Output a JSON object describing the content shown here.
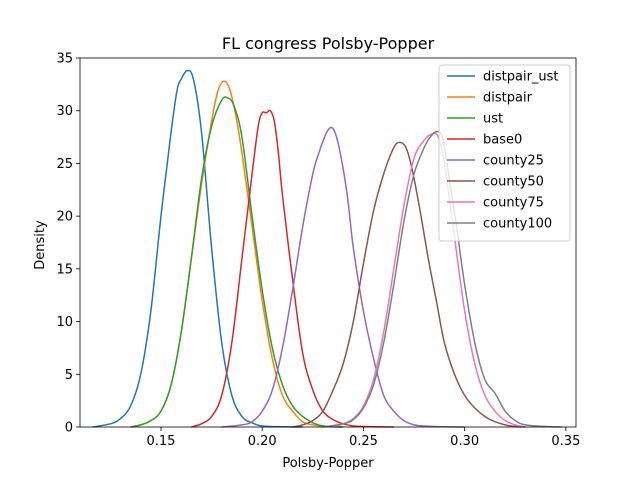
{
  "chart_data": {
    "type": "line",
    "title": "FL congress Polsby-Popper",
    "xlabel": "Polsby-Popper",
    "ylabel": "Density",
    "xlim": [
      0.11,
      0.355
    ],
    "ylim": [
      0,
      35
    ],
    "xticks": [
      "0.15",
      "0.20",
      "0.25",
      "0.30",
      "0.35"
    ],
    "yticks": [
      "0",
      "5",
      "10",
      "15",
      "20",
      "25",
      "30",
      "35"
    ],
    "grid": false,
    "legend_position": "top-right",
    "series": [
      {
        "name": "distpair_ust",
        "color": "#1f77b4",
        "x": [
          0.116,
          0.125,
          0.13,
          0.135,
          0.14,
          0.145,
          0.15,
          0.155,
          0.158,
          0.16,
          0.163,
          0.166,
          0.17,
          0.175,
          0.18,
          0.185,
          0.19,
          0.195,
          0.2,
          0.21,
          0.22
        ],
        "y": [
          0.0,
          0.3,
          0.8,
          2.0,
          5.0,
          11.0,
          20.0,
          28.0,
          32.0,
          33.0,
          33.8,
          33.0,
          28.0,
          17.0,
          8.0,
          3.0,
          1.0,
          0.4,
          0.1,
          0.02,
          0.0
        ]
      },
      {
        "name": "distpair",
        "color": "#ff7f0e",
        "x": [
          0.135,
          0.14,
          0.145,
          0.15,
          0.155,
          0.16,
          0.165,
          0.17,
          0.175,
          0.178,
          0.181,
          0.184,
          0.187,
          0.19,
          0.195,
          0.2,
          0.205,
          0.21,
          0.215,
          0.22,
          0.225,
          0.23,
          0.24
        ],
        "y": [
          0.0,
          0.2,
          0.6,
          1.5,
          4.0,
          9.0,
          16.0,
          23.0,
          29.0,
          31.8,
          32.8,
          32.0,
          29.5,
          26.0,
          19.0,
          12.0,
          6.5,
          3.0,
          1.5,
          0.5,
          0.2,
          0.1,
          0.0
        ]
      },
      {
        "name": "ust",
        "color": "#2ca02c",
        "x": [
          0.135,
          0.14,
          0.145,
          0.15,
          0.155,
          0.16,
          0.165,
          0.17,
          0.175,
          0.18,
          0.183,
          0.186,
          0.19,
          0.195,
          0.2,
          0.205,
          0.21,
          0.215,
          0.22,
          0.225,
          0.23,
          0.24
        ],
        "y": [
          0.0,
          0.2,
          0.6,
          1.5,
          4.0,
          9.0,
          16.0,
          23.5,
          28.5,
          31.0,
          31.2,
          30.5,
          27.5,
          20.0,
          13.0,
          7.5,
          4.0,
          2.0,
          1.0,
          0.4,
          0.1,
          0.0
        ]
      },
      {
        "name": "base0",
        "color": "#d62728",
        "x": [
          0.165,
          0.17,
          0.175,
          0.18,
          0.185,
          0.19,
          0.195,
          0.198,
          0.2,
          0.202,
          0.204,
          0.206,
          0.208,
          0.21,
          0.215,
          0.22,
          0.225,
          0.23,
          0.235,
          0.24,
          0.245,
          0.25,
          0.255,
          0.265
        ],
        "y": [
          0.0,
          0.3,
          1.0,
          3.0,
          8.0,
          16.0,
          24.0,
          28.5,
          29.8,
          29.8,
          30.0,
          29.0,
          26.0,
          22.0,
          14.0,
          7.0,
          3.5,
          1.5,
          0.7,
          0.3,
          0.1,
          0.05,
          0.02,
          0.0
        ]
      },
      {
        "name": "county25",
        "color": "#9467bd",
        "x": [
          0.18,
          0.19,
          0.195,
          0.2,
          0.205,
          0.21,
          0.215,
          0.22,
          0.225,
          0.228,
          0.232,
          0.235,
          0.238,
          0.242,
          0.245,
          0.25,
          0.255,
          0.26,
          0.265,
          0.27,
          0.275,
          0.28,
          0.29,
          0.3
        ],
        "y": [
          0.0,
          0.2,
          0.5,
          1.5,
          3.5,
          7.5,
          13.0,
          19.0,
          24.0,
          26.0,
          28.0,
          28.3,
          26.5,
          22.0,
          17.0,
          11.0,
          6.5,
          3.0,
          1.5,
          0.6,
          0.2,
          0.1,
          0.02,
          0.0
        ]
      },
      {
        "name": "county50",
        "color": "#8c564b",
        "x": [
          0.215,
          0.22,
          0.225,
          0.23,
          0.235,
          0.24,
          0.245,
          0.25,
          0.255,
          0.26,
          0.265,
          0.268,
          0.271,
          0.274,
          0.278,
          0.282,
          0.286,
          0.29,
          0.295,
          0.3,
          0.305,
          0.31,
          0.315,
          0.32,
          0.325,
          0.33
        ],
        "y": [
          0.0,
          0.2,
          0.6,
          1.5,
          3.5,
          6.0,
          10.0,
          15.5,
          20.5,
          24.0,
          26.5,
          27.0,
          26.5,
          24.5,
          20.5,
          16.0,
          12.0,
          8.0,
          5.0,
          3.0,
          1.8,
          1.0,
          0.5,
          0.2,
          0.05,
          0.0
        ]
      },
      {
        "name": "county75",
        "color": "#e377c2",
        "x": [
          0.235,
          0.24,
          0.245,
          0.25,
          0.255,
          0.26,
          0.265,
          0.27,
          0.275,
          0.28,
          0.284,
          0.287,
          0.29,
          0.295,
          0.3,
          0.305,
          0.31,
          0.315,
          0.32,
          0.325,
          0.33
        ],
        "y": [
          0.0,
          0.3,
          0.8,
          2.0,
          4.5,
          9.0,
          15.0,
          21.0,
          25.5,
          27.2,
          27.8,
          27.5,
          25.0,
          18.0,
          11.0,
          6.0,
          3.0,
          1.5,
          0.6,
          0.2,
          0.0
        ]
      },
      {
        "name": "county100",
        "color": "#7f7f7f",
        "x": [
          0.23,
          0.24,
          0.245,
          0.25,
          0.255,
          0.26,
          0.265,
          0.27,
          0.275,
          0.28,
          0.283,
          0.286,
          0.289,
          0.292,
          0.296,
          0.3,
          0.305,
          0.31,
          0.315,
          0.32,
          0.325,
          0.33,
          0.34,
          0.348
        ],
        "y": [
          0.0,
          0.3,
          0.7,
          1.8,
          4.0,
          8.0,
          13.5,
          19.5,
          24.0,
          26.5,
          27.5,
          28.0,
          27.5,
          24.0,
          19.0,
          13.5,
          8.0,
          4.5,
          3.2,
          1.5,
          0.6,
          0.2,
          0.05,
          0.0
        ]
      }
    ]
  }
}
